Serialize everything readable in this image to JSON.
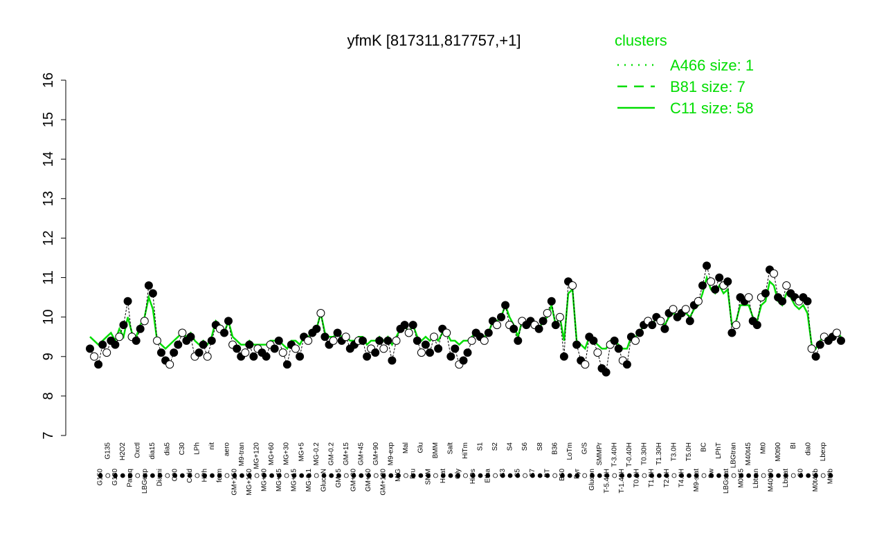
{
  "chart_data": {
    "type": "line",
    "title": "yfmK [817311,817757,+1]",
    "ylim": [
      7,
      16
    ],
    "yticks": [
      7,
      8,
      9,
      10,
      11,
      12,
      13,
      14,
      15,
      16
    ],
    "xlabel": "",
    "ylabel": "",
    "grid": false,
    "legend": {
      "title": "clusters",
      "placement": "top-right",
      "entries": [
        {
          "label": "A466 size: 1",
          "style": "dotted"
        },
        {
          "label": "B81 size: 7",
          "style": "dashed"
        },
        {
          "label": "C11 size: 58",
          "style": "solid"
        }
      ]
    },
    "line_color": "#00dd00",
    "xtick_labels": [
      "G150",
      "G135",
      "G180",
      "H2O2",
      "Paraq",
      "Oxctl",
      "LBGexp",
      "dia15",
      "Diami",
      "dia5",
      "C90",
      "C30",
      "Cold",
      "LPh",
      "HPh",
      "nit",
      "ferm",
      "aero",
      "GM+150",
      "M9-tran",
      "MG+150",
      "MG+120",
      "MG+90",
      "MG+60",
      "MG+45",
      "MG+30",
      "MG+15",
      "MG+5",
      "MG-0.1",
      "MG-0.2",
      "GlucoN",
      "GM-0.2",
      "GM+5",
      "GM+15",
      "GM+30",
      "GM+45",
      "GM+60",
      "GM+90",
      "GM+120",
      "M9-exp",
      "M/G",
      "Mal",
      "Fru",
      "Glu",
      "SMM",
      "BMM",
      "Heat",
      "Salt",
      "Gly",
      "HiTm",
      "HiOs",
      "S1",
      "Etha",
      "S2",
      "S3",
      "S4",
      "S5",
      "S6",
      "S7",
      "S8",
      "BT",
      "B36",
      "B60",
      "LoTm",
      "Pyr",
      "G/S",
      "Glucon",
      "SMMPr",
      "T-5.40H",
      "T-3.40H",
      "T-1.40H",
      "T-0.40H",
      "T0.0H",
      "T0.30H",
      "T1.0H",
      "T1.30H",
      "T2.0H",
      "T3.0H",
      "T4.0H",
      "T5.0H",
      "M9-stat",
      "BC",
      "Sw",
      "LPhT",
      "LBGstat",
      "LBGtran",
      "M0t45",
      "M40t45",
      "Lbtran",
      "Mt0",
      "M40t90",
      "M0t90",
      "Lbstat",
      "BI",
      "S0",
      "dia0",
      "M0t45b",
      "Lbexp",
      "Mt0b"
    ],
    "points": [
      9.2,
      9.0,
      8.8,
      9.3,
      9.1,
      9.4,
      9.3,
      9.5,
      9.8,
      10.4,
      9.5,
      9.4,
      9.7,
      9.9,
      10.8,
      10.6,
      9.4,
      9.1,
      8.9,
      8.8,
      9.1,
      9.3,
      9.6,
      9.4,
      9.5,
      9.0,
      9.1,
      9.3,
      9.0,
      9.4,
      9.8,
      9.7,
      9.6,
      9.9,
      9.3,
      9.2,
      9.0,
      9.1,
      9.3,
      9.0,
      9.2,
      9.1,
      9.0,
      9.3,
      9.2,
      9.4,
      9.1,
      8.8,
      9.3,
      9.2,
      9.0,
      9.5,
      9.4,
      9.6,
      9.7,
      10.1,
      9.5,
      9.3,
      9.4,
      9.6,
      9.4,
      9.5,
      9.2,
      9.3,
      9.4,
      9.4,
      9.0,
      9.2,
      9.1,
      9.4,
      9.2,
      9.4,
      8.9,
      9.4,
      9.7,
      9.8,
      9.6,
      9.8,
      9.4,
      9.1,
      9.3,
      9.1,
      9.5,
      9.2,
      9.7,
      9.6,
      9.0,
      9.2,
      8.8,
      8.9,
      9.1,
      9.4,
      9.6,
      9.5,
      9.4,
      9.6,
      9.9,
      9.8,
      10.0,
      10.3,
      9.8,
      9.7,
      9.4,
      9.9,
      9.8,
      9.9,
      9.8,
      9.7,
      9.9,
      10.1,
      10.4,
      9.8,
      10.0,
      9.0,
      10.9,
      10.8,
      9.3,
      8.9,
      8.8,
      9.5,
      9.4,
      9.1,
      8.7,
      8.6,
      9.3,
      9.4,
      9.2,
      8.9,
      8.8,
      9.5,
      9.4,
      9.6,
      9.8,
      9.9,
      9.8,
      10.0,
      9.9,
      9.7,
      10.1,
      10.2,
      10.0,
      10.1,
      10.2,
      9.9,
      10.3,
      10.4,
      10.8,
      11.3,
      10.9,
      10.7,
      11.0,
      10.8,
      10.9,
      9.6,
      9.8,
      10.5,
      10.4,
      10.5,
      9.9,
      9.8,
      10.5,
      10.6,
      11.2,
      11.1,
      10.5,
      10.4,
      10.8,
      10.6,
      10.5,
      10.4,
      10.5,
      10.4,
      9.2,
      9.0,
      9.3,
      9.5,
      9.4,
      9.5,
      9.6,
      9.4
    ],
    "series": [
      {
        "style": "solid",
        "values": [
          9.5,
          9.4,
          9.3,
          9.4,
          9.5,
          9.6,
          9.4,
          9.7,
          9.5,
          10.0,
          9.6,
          9.5,
          9.8,
          10.0,
          10.5,
          10.2,
          9.4,
          9.3,
          9.2,
          9.3,
          9.4,
          9.5,
          9.6,
          9.5,
          9.6,
          9.4,
          9.3,
          9.4,
          9.3,
          9.5,
          9.9,
          9.8,
          9.6,
          9.9,
          9.5,
          9.4,
          9.3,
          9.3,
          9.4,
          9.3,
          9.3,
          9.3,
          9.3,
          9.4,
          9.4,
          9.4,
          9.3,
          9.2,
          9.4,
          9.4,
          9.3,
          9.5,
          9.5,
          9.6,
          9.7,
          10.1,
          9.6,
          9.5,
          9.5,
          9.6,
          9.5,
          9.5,
          9.4,
          9.4,
          9.5,
          9.5,
          9.3,
          9.4,
          9.4,
          9.5,
          9.4,
          9.5,
          9.3,
          9.5,
          9.7,
          9.8,
          9.6,
          9.8,
          9.5,
          9.4,
          9.5,
          9.4,
          9.5,
          9.4,
          9.6,
          9.6,
          9.4,
          9.4,
          9.3,
          9.4,
          9.4,
          9.5,
          9.6,
          9.5,
          9.5,
          9.6,
          9.9,
          9.9,
          10.0,
          10.3,
          10.0,
          9.8,
          9.5,
          9.9,
          9.8,
          9.9,
          9.8,
          9.7,
          9.9,
          10.0,
          10.3,
          9.8,
          10.0,
          9.4,
          10.6,
          10.7,
          9.4,
          9.3,
          9.2,
          9.5,
          9.4,
          9.3,
          9.2,
          9.2,
          9.4,
          9.4,
          9.3,
          9.2,
          9.2,
          9.5,
          9.5,
          9.6,
          9.8,
          9.9,
          9.8,
          10.0,
          9.9,
          9.8,
          10.0,
          10.1,
          10.0,
          10.1,
          10.1,
          10.0,
          10.2,
          10.3,
          10.6,
          11.0,
          10.7,
          10.6,
          10.8,
          10.6,
          10.7,
          9.8,
          9.9,
          10.3,
          10.3,
          10.3,
          10.0,
          9.9,
          10.3,
          10.4,
          10.9,
          10.8,
          10.4,
          10.3,
          10.6,
          10.5,
          10.3,
          10.2,
          10.3,
          10.1,
          9.3,
          9.2,
          9.4,
          9.5,
          9.5,
          9.5,
          9.6,
          9.5
        ]
      }
    ]
  }
}
